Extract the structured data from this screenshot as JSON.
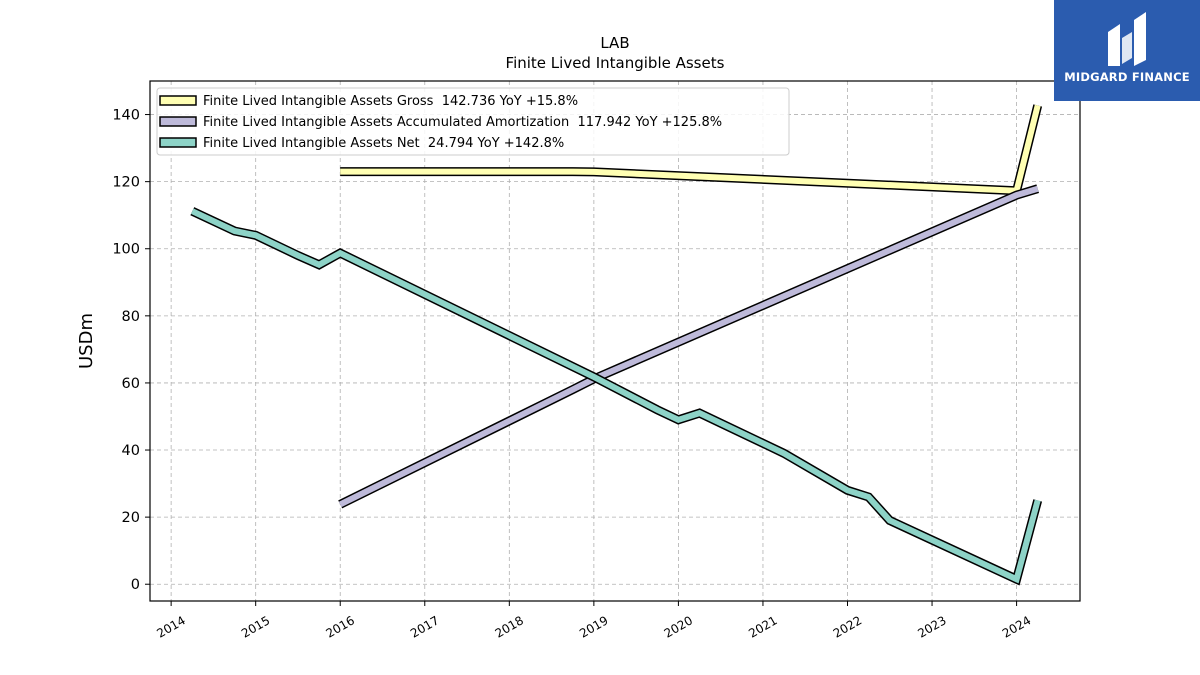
{
  "chart_data": {
    "type": "line",
    "title": "LAB",
    "subtitle": "Finite Lived Intangible Assets",
    "ylabel": "USDm",
    "xlabel": "",
    "ylim": [
      -5,
      150
    ],
    "xlim": [
      2013.75,
      2024.75
    ],
    "yticks": [
      0,
      20,
      40,
      60,
      80,
      100,
      120,
      140
    ],
    "xticks": [
      "2014",
      "2015",
      "2016",
      "2017",
      "2018",
      "2019",
      "2020",
      "2021",
      "2022",
      "2023",
      "2024"
    ],
    "grid": true,
    "legend_position": "top-left",
    "series": [
      {
        "name": "Finite Lived Intangible Assets Gross  142.736 YoY +15.8%",
        "color": "#ffffb3",
        "x": [
          2016.0,
          2018.75,
          2019.0,
          2024.0,
          2024.25
        ],
        "y": [
          123.0,
          123.0,
          122.9,
          117.3,
          142.7
        ]
      },
      {
        "name": "Finite Lived Intangible Assets Accumulated Amortization  117.942 YoY +125.8%",
        "color": "#bebada",
        "x": [
          2016.0,
          2018.75,
          2019.0,
          2024.0,
          2024.25
        ],
        "y": [
          23.8,
          58.0,
          61.2,
          116.0,
          117.9
        ]
      },
      {
        "name": "Finite Lived Intangible Assets Net  24.794 YoY +142.8%",
        "color": "#8dd3c7",
        "x": [
          2014.25,
          2014.75,
          2015.0,
          2015.5,
          2015.75,
          2016.0,
          2019.0,
          2019.75,
          2020.0,
          2020.25,
          2020.5,
          2021.0,
          2021.25,
          2022.0,
          2022.25,
          2022.5,
          2024.0,
          2024.25
        ],
        "y": [
          111.2,
          105.3,
          104.0,
          98.0,
          95.2,
          98.7,
          61.8,
          52.0,
          49.0,
          51.0,
          48.0,
          42.0,
          39.0,
          28.0,
          26.0,
          19.0,
          1.5,
          25.0
        ]
      }
    ]
  },
  "brand": {
    "name": "MIDGARD FINANCE",
    "color": "#2b5caf"
  }
}
